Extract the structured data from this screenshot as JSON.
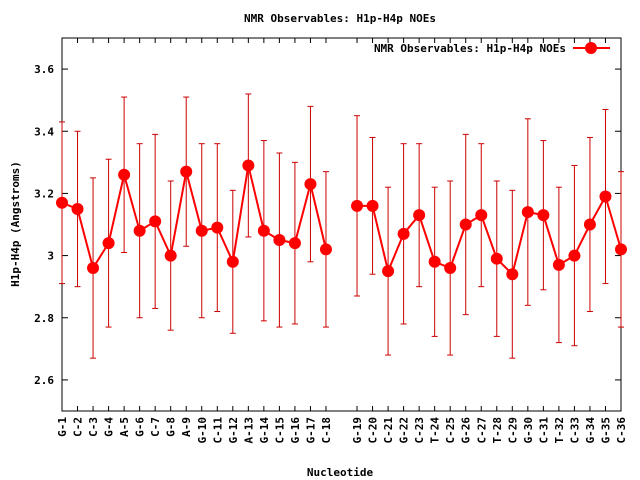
{
  "chart_data": {
    "type": "line",
    "title": "NMR Observables: H1p-H4p NOEs",
    "xlabel": "Nucleotide",
    "ylabel": "H1p-H4p (Angstroms)",
    "ylim": [
      2.5,
      3.7
    ],
    "yticks": [
      2.6,
      2.8,
      3,
      3.2,
      3.4,
      3.6
    ],
    "ytick_labels": [
      "2.6",
      "2.8",
      "3",
      "3.2",
      "3.4",
      "3.6"
    ],
    "grid": false,
    "legend_position": "top-right",
    "series": [
      {
        "name": "NMR Observables: H1p-H4p NOEs",
        "color": "#ff0000",
        "errorbar_color": "#cc0000",
        "segments": [
          {
            "categories": [
              "G-1",
              "C-2",
              "C-3",
              "G-4",
              "A-5",
              "G-6",
              "C-7",
              "G-8",
              "A-9",
              "G-10",
              "C-11",
              "G-12",
              "A-13",
              "G-14",
              "C-15",
              "G-16",
              "G-17",
              "C-18"
            ],
            "positions": [
              1,
              2,
              3,
              4,
              5,
              6,
              7,
              8,
              9,
              10,
              11,
              12,
              13,
              14,
              15,
              16,
              17,
              18
            ],
            "values": [
              3.17,
              3.15,
              2.96,
              3.04,
              3.26,
              3.08,
              3.11,
              3.0,
              3.27,
              3.08,
              3.09,
              2.98,
              3.29,
              3.08,
              3.05,
              3.04,
              3.23,
              3.02
            ],
            "errors": [
              0.26,
              0.25,
              0.29,
              0.27,
              0.25,
              0.28,
              0.28,
              0.24,
              0.24,
              0.28,
              0.27,
              0.23,
              0.23,
              0.29,
              0.28,
              0.26,
              0.25,
              0.25
            ]
          },
          {
            "categories": [
              "G-19",
              "C-20",
              "C-21",
              "G-22",
              "C-23",
              "T-24",
              "C-25",
              "G-26",
              "C-27",
              "T-28",
              "C-29",
              "G-30",
              "C-31",
              "T-32",
              "C-33",
              "G-34",
              "G-35",
              "C-36"
            ],
            "positions": [
              20,
              21,
              22,
              23,
              24,
              25,
              26,
              27,
              28,
              29,
              30,
              31,
              32,
              33,
              34,
              35,
              36,
              37
            ],
            "values": [
              3.16,
              3.16,
              2.95,
              3.07,
              3.13,
              2.98,
              2.96,
              3.1,
              3.13,
              2.99,
              2.94,
              3.14,
              3.13,
              2.97,
              3.0,
              3.1,
              3.19,
              3.02
            ],
            "errors": [
              0.29,
              0.22,
              0.27,
              0.29,
              0.23,
              0.24,
              0.28,
              0.29,
              0.23,
              0.25,
              0.27,
              0.3,
              0.24,
              0.25,
              0.29,
              0.28,
              0.28,
              0.25
            ]
          }
        ]
      }
    ],
    "xrange": [
      1,
      37
    ]
  }
}
